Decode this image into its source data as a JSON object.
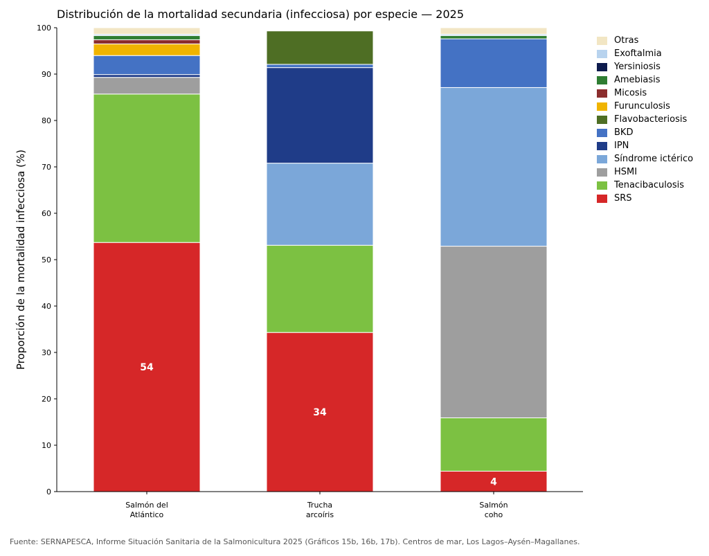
{
  "chart_data": {
    "type": "bar",
    "stacked": true,
    "title": "Distribución de la mortalidad secundaria (infecciosa) por especie — 2025",
    "ylabel": "Proporción de la mortalidad infecciosa (%)",
    "xlabel": "",
    "ylim": [
      0,
      100
    ],
    "yticks": [
      "0",
      "10",
      "20",
      "30",
      "40",
      "50",
      "60",
      "70",
      "80",
      "90",
      "100"
    ],
    "categories": [
      [
        "Salmón del",
        "Atlántico"
      ],
      [
        "Trucha",
        "arcoíris"
      ],
      [
        "Salmón",
        "coho"
      ]
    ],
    "legend_position": "right",
    "grid": false,
    "series": [
      {
        "name": "SRS",
        "color": "#d62728",
        "values": [
          53.7,
          34.3,
          4.4
        ]
      },
      {
        "name": "Tenacibaculosis",
        "color": "#7cc142",
        "values": [
          32.0,
          18.8,
          11.5
        ]
      },
      {
        "name": "HSMI",
        "color": "#9e9e9e",
        "values": [
          3.6,
          0.0,
          37.0
        ]
      },
      {
        "name": "Síndrome ictérico",
        "color": "#7ba7d9",
        "values": [
          0.0,
          17.7,
          34.2
        ]
      },
      {
        "name": "IPN",
        "color": "#1f3c88",
        "values": [
          0.6,
          20.6,
          0.0
        ]
      },
      {
        "name": "BKD",
        "color": "#4472c4",
        "values": [
          4.1,
          0.7,
          10.5
        ]
      },
      {
        "name": "Flavobacteriosis",
        "color": "#4e6e24",
        "values": [
          0.0,
          7.2,
          0.0
        ]
      },
      {
        "name": "Furunculosis",
        "color": "#f0b400",
        "values": [
          2.5,
          0.0,
          0.0
        ]
      },
      {
        "name": "Micosis",
        "color": "#8b2d2d",
        "values": [
          0.9,
          0.0,
          0.0
        ]
      },
      {
        "name": "Amebiasis",
        "color": "#2e7d32",
        "values": [
          0.9,
          0.0,
          0.7
        ]
      },
      {
        "name": "Yersiniosis",
        "color": "#0d1b4d",
        "values": [
          0.0,
          0.0,
          0.0
        ]
      },
      {
        "name": "Exoftalmia",
        "color": "#b8d3ee",
        "values": [
          0.3,
          0.0,
          0.3
        ]
      },
      {
        "name": "Otras",
        "color": "#f2e6c4",
        "values": [
          1.4,
          0.0,
          1.4
        ]
      }
    ],
    "data_labels": [
      {
        "category_index": 0,
        "series": "SRS",
        "text": "54"
      },
      {
        "category_index": 1,
        "series": "SRS",
        "text": "34"
      },
      {
        "category_index": 2,
        "series": "SRS",
        "text": "4"
      }
    ]
  },
  "legend_order": [
    "Otras",
    "Exoftalmia",
    "Yersiniosis",
    "Amebiasis",
    "Micosis",
    "Furunculosis",
    "Flavobacteriosis",
    "BKD",
    "IPN",
    "Síndrome ictérico",
    "HSMI",
    "Tenacibaculosis",
    "SRS"
  ],
  "footer": {
    "source": "Fuente: SERNAPESCA, Informe Situación Sanitaria de la Salmonicultura 2025 (Gráficos 15b, 16b, 17b). Centros de mar, Los Lagos–Aysén–Magallanes."
  }
}
